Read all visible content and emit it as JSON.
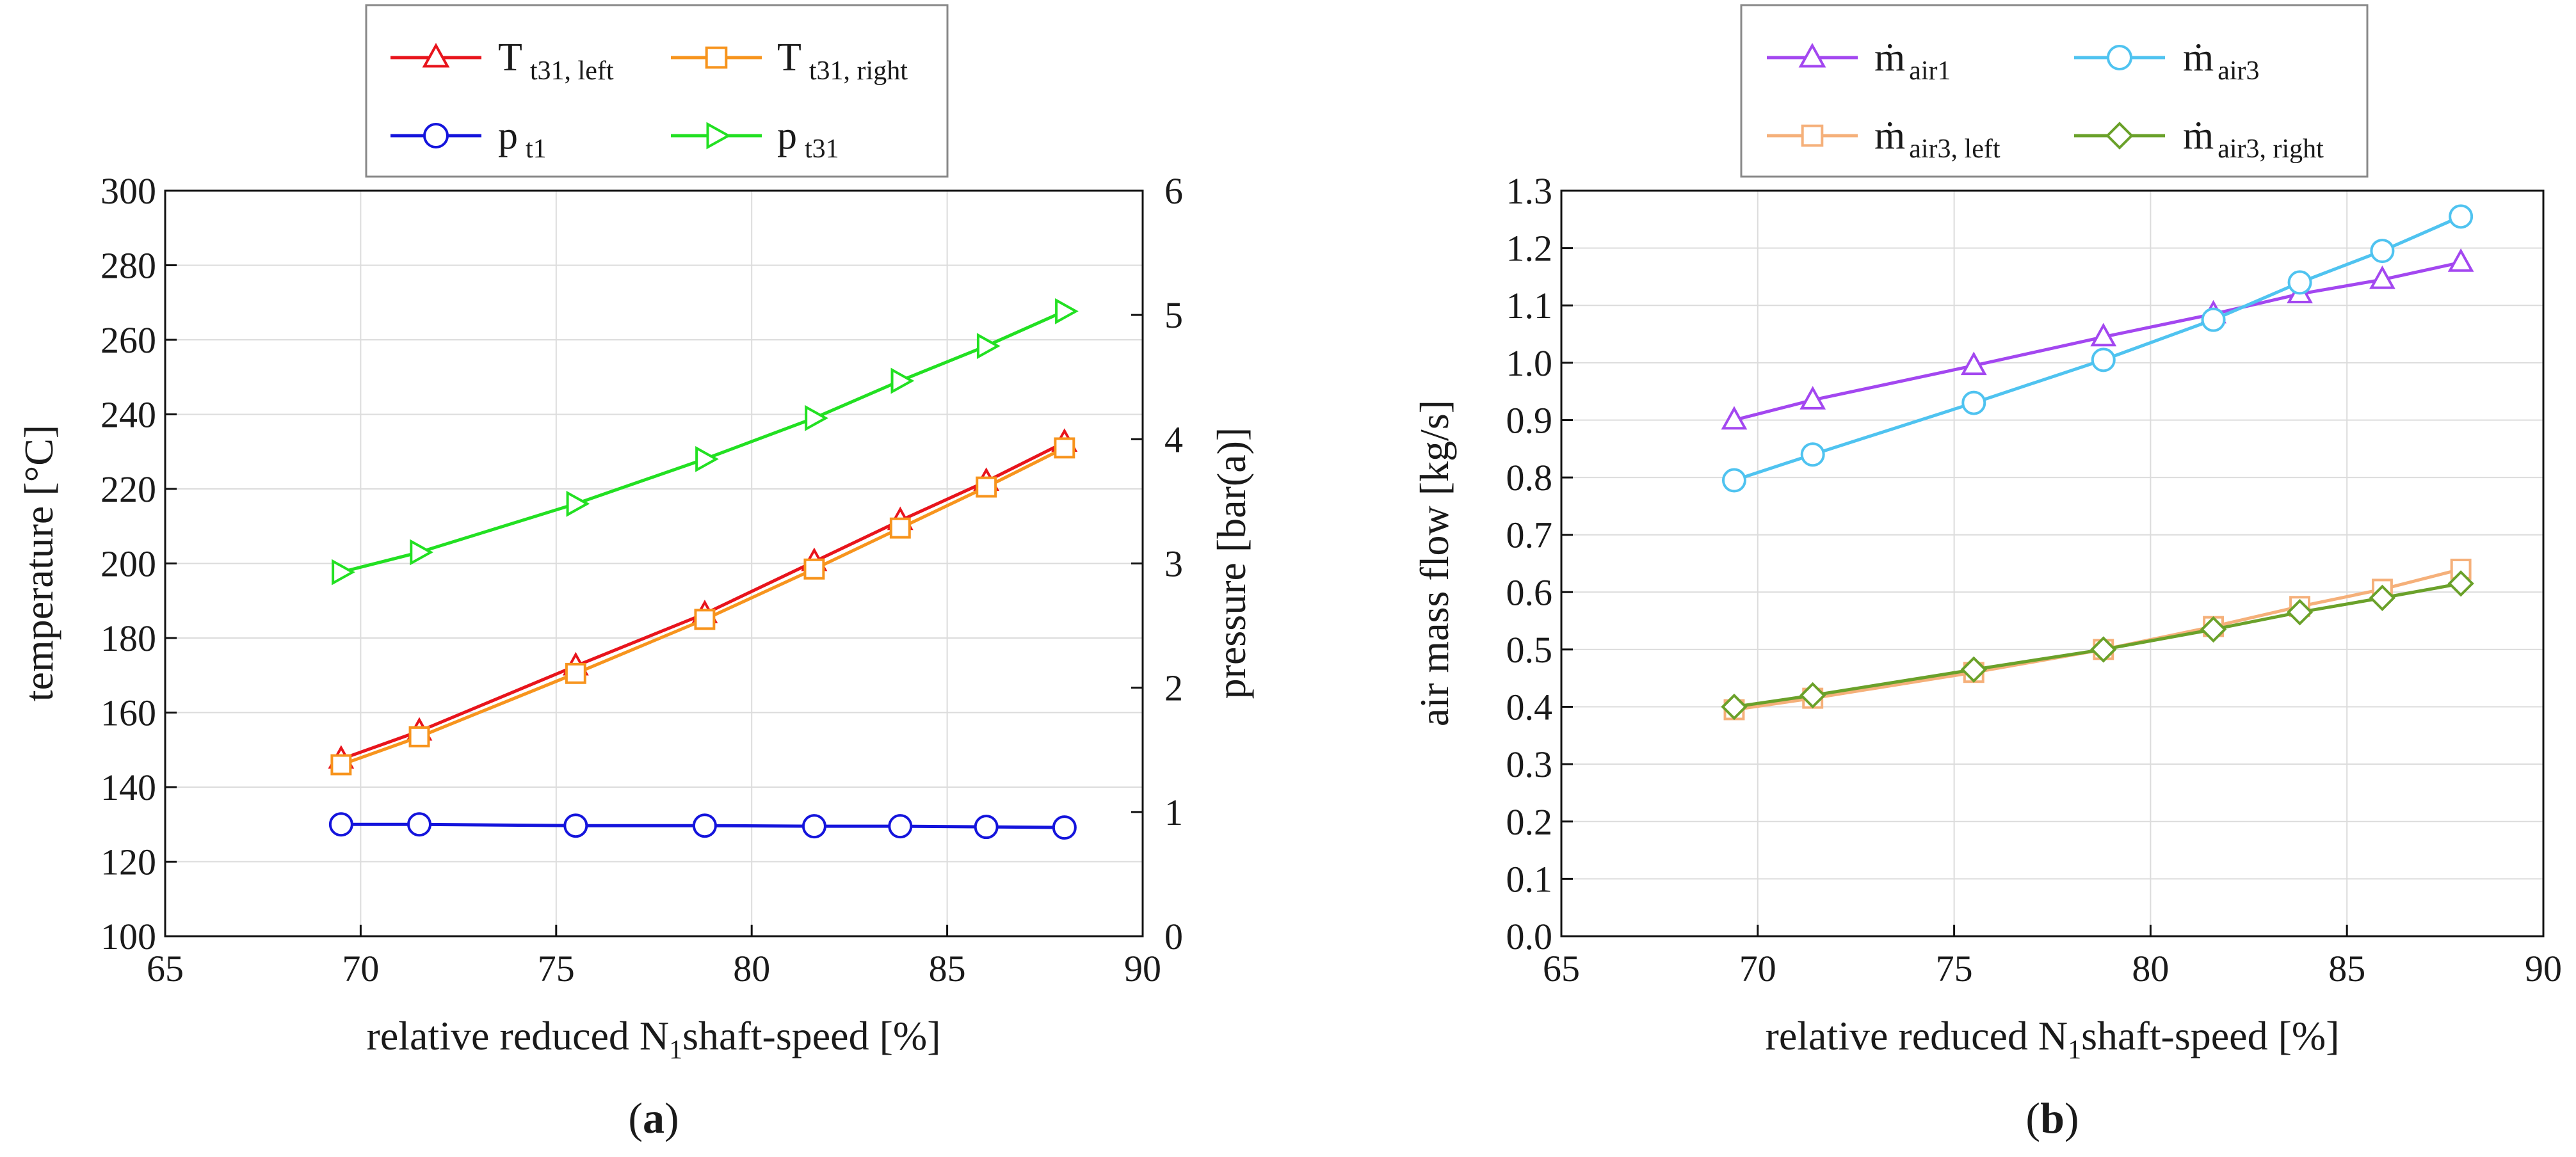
{
  "chart_data": [
    {
      "panel_label": "a",
      "type": "line",
      "xlabel": {
        "pre": "relative reduced N",
        "sub": "1",
        "post": "shaft-speed [%]"
      },
      "ylabel": "temperature [°C]",
      "y2label": "pressure [bar(a)]",
      "xlim": [
        65,
        90
      ],
      "ylim": [
        100,
        300
      ],
      "y2lim": [
        0,
        6
      ],
      "xticks": [
        "65",
        "70",
        "75",
        "80",
        "85",
        "90"
      ],
      "yticks": [
        "100",
        "120",
        "140",
        "160",
        "180",
        "200",
        "220",
        "240",
        "260",
        "280",
        "300"
      ],
      "y2ticks": [
        "0",
        "1",
        "2",
        "3",
        "4",
        "5",
        "6"
      ],
      "grid": true,
      "legend_placement": "top-center",
      "series": [
        {
          "name": "T",
          "sub": "t31, left",
          "axis": "left",
          "color": "#e8141c",
          "marker": "triangle-up",
          "x": [
            69.5,
            71.5,
            75.5,
            78.8,
            81.6,
            83.8,
            86.0,
            88.0
          ],
          "values": [
            147.5,
            155.0,
            172.5,
            186.5,
            200.5,
            211.5,
            222.0,
            232.5
          ]
        },
        {
          "name": "T",
          "sub": "t31, right",
          "axis": "left",
          "color": "#f7941d",
          "marker": "square",
          "x": [
            69.5,
            71.5,
            75.5,
            78.8,
            81.6,
            83.8,
            86.0,
            88.0
          ],
          "values": [
            146.0,
            153.5,
            170.5,
            185.0,
            198.5,
            209.5,
            220.5,
            231.0
          ]
        },
        {
          "name": "p",
          "sub": "t1",
          "axis": "right",
          "color": "#1414dc",
          "marker": "circle",
          "x": [
            69.5,
            71.5,
            75.5,
            78.8,
            81.6,
            83.8,
            86.0,
            88.0
          ],
          "values": [
            0.9,
            0.9,
            0.89,
            0.89,
            0.885,
            0.885,
            0.88,
            0.875
          ]
        },
        {
          "name": "p",
          "sub": "t31",
          "axis": "right",
          "color": "#22e022",
          "marker": "triangle-right",
          "x": [
            69.5,
            71.5,
            75.5,
            78.8,
            81.6,
            83.8,
            86.0,
            88.0
          ],
          "values": [
            2.93,
            3.09,
            3.48,
            3.84,
            4.17,
            4.47,
            4.75,
            5.03
          ]
        }
      ]
    },
    {
      "panel_label": "b",
      "type": "line",
      "xlabel": {
        "pre": "relative reduced N",
        "sub": "1",
        "post": "shaft-speed [%]"
      },
      "ylabel": "air mass flow [kg/s]",
      "xlim": [
        65,
        90
      ],
      "ylim": [
        0.0,
        1.3
      ],
      "xticks": [
        "65",
        "70",
        "75",
        "80",
        "85",
        "90"
      ],
      "yticks": [
        "0.0",
        "0.1",
        "0.2",
        "0.3",
        "0.4",
        "0.5",
        "0.6",
        "0.7",
        "0.8",
        "0.9",
        "1.0",
        "1.1",
        "1.2",
        "1.3"
      ],
      "grid": true,
      "legend_placement": "top-center",
      "series": [
        {
          "name": "ṁ",
          "sub": "air1",
          "axis": "left",
          "color": "#a347f0",
          "marker": "triangle-up",
          "x": [
            69.4,
            71.4,
            75.5,
            78.8,
            81.6,
            83.8,
            85.9,
            87.9
          ],
          "values": [
            0.9,
            0.935,
            0.995,
            1.045,
            1.085,
            1.12,
            1.145,
            1.175
          ]
        },
        {
          "name": "ṁ",
          "sub": "air3",
          "axis": "left",
          "color": "#4fc3f0",
          "marker": "circle",
          "x": [
            69.4,
            71.4,
            75.5,
            78.8,
            81.6,
            83.8,
            85.9,
            87.9
          ],
          "values": [
            0.795,
            0.84,
            0.93,
            1.005,
            1.075,
            1.14,
            1.195,
            1.255
          ]
        },
        {
          "name": "ṁ",
          "sub": "air3, left",
          "axis": "left",
          "color": "#f5b07a",
          "marker": "square",
          "x": [
            69.4,
            71.4,
            75.5,
            78.8,
            81.6,
            83.8,
            85.9,
            87.9
          ],
          "values": [
            0.395,
            0.415,
            0.46,
            0.5,
            0.54,
            0.575,
            0.605,
            0.64
          ]
        },
        {
          "name": "ṁ",
          "sub": "air3, right",
          "axis": "left",
          "color": "#6aa12a",
          "marker": "diamond",
          "x": [
            69.4,
            71.4,
            75.5,
            78.8,
            81.6,
            83.8,
            85.9,
            87.9
          ],
          "values": [
            0.4,
            0.42,
            0.465,
            0.5,
            0.535,
            0.565,
            0.59,
            0.615
          ]
        }
      ]
    }
  ]
}
